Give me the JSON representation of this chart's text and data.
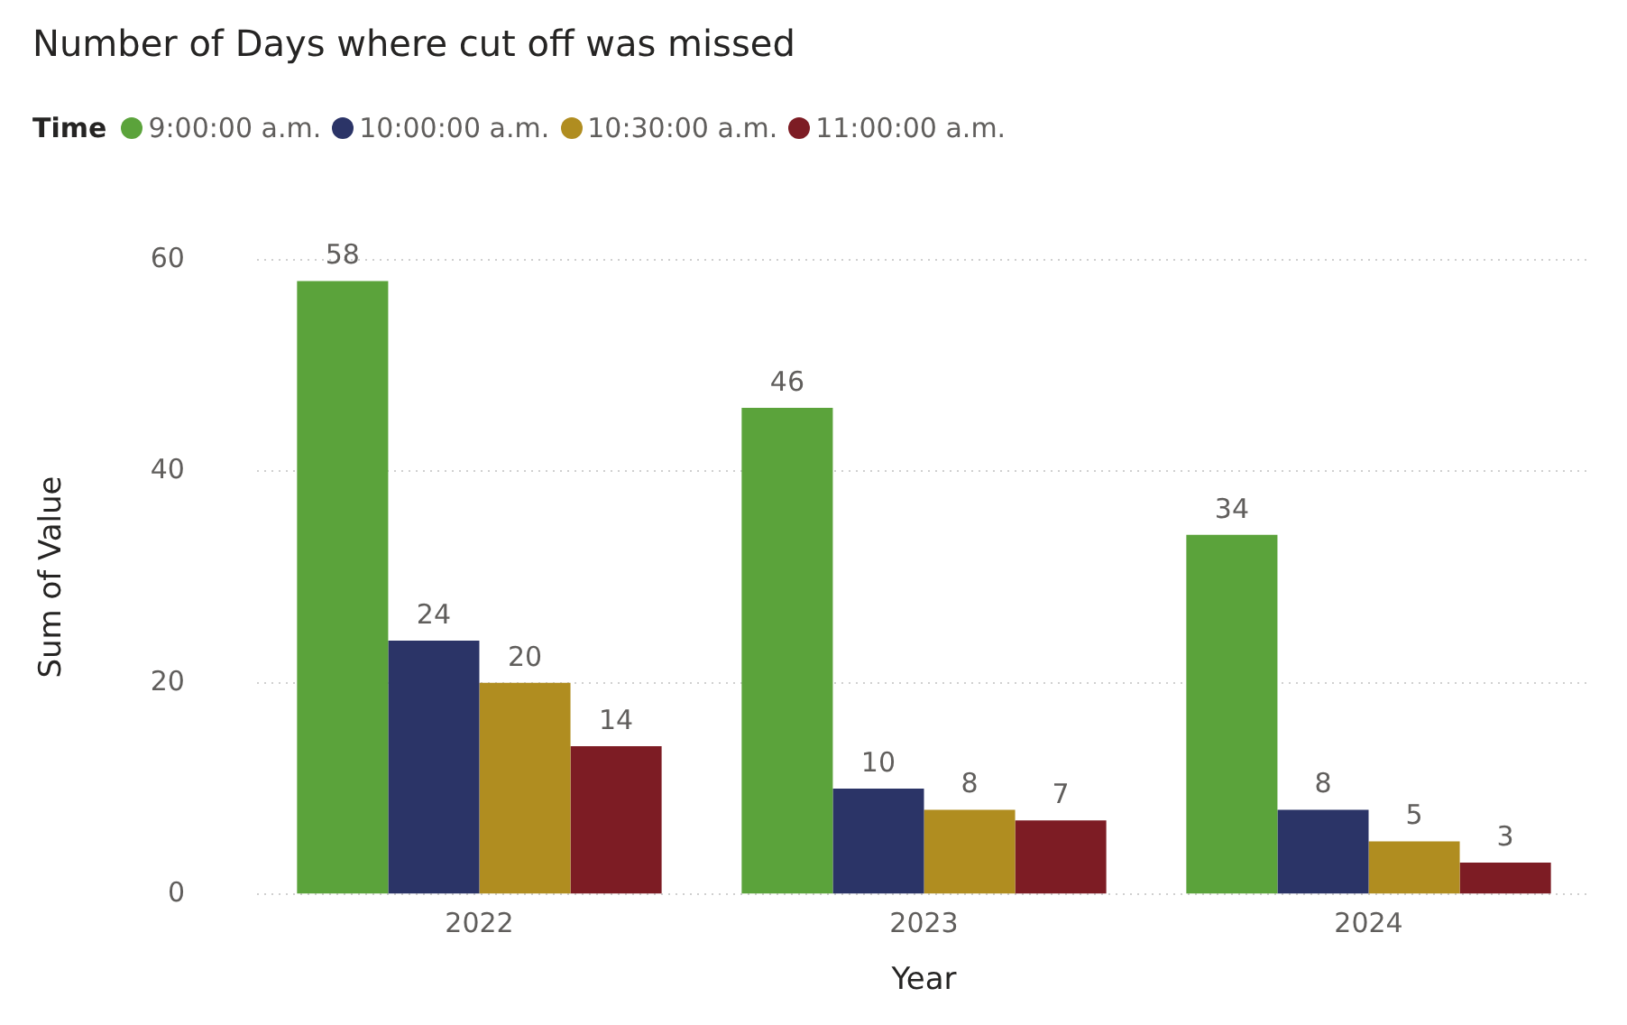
{
  "chart_data": {
    "type": "bar",
    "title": "Number of Days where cut off was missed",
    "legend_title": "Time",
    "xlabel": "Year",
    "ylabel": "Sum of Value",
    "categories": [
      "2022",
      "2023",
      "2024"
    ],
    "series": [
      {
        "name": "9:00:00 a.m.",
        "color": "#5ba33b",
        "values": [
          58,
          46,
          34
        ]
      },
      {
        "name": "10:00:00 a.m.",
        "color": "#2b3467",
        "values": [
          24,
          10,
          8
        ]
      },
      {
        "name": "10:30:00 a.m.",
        "color": "#b08d20",
        "values": [
          20,
          8,
          5
        ]
      },
      {
        "name": "11:00:00 a.m.",
        "color": "#7d1c24",
        "values": [
          14,
          7,
          3
        ]
      }
    ],
    "ylim": [
      0,
      60
    ],
    "yticks": [
      0,
      20,
      40,
      60
    ],
    "grid": "y",
    "legend": "top left",
    "data_labels": true
  }
}
